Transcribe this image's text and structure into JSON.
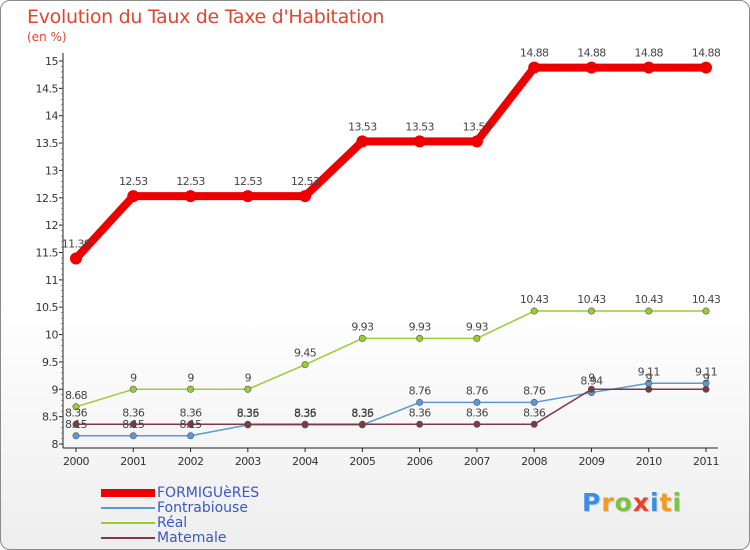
{
  "header": {
    "title": "Evolution du Taux de Taxe d'Habitation",
    "unit": "(en %)"
  },
  "chart_data": {
    "type": "line",
    "title": "Evolution du Taux de Taxe d'Habitation",
    "ylabel": "(en %)",
    "xlabel": "",
    "x": [
      "2000",
      "2001",
      "2002",
      "2003",
      "2004",
      "2005",
      "2006",
      "2007",
      "2008",
      "2009",
      "2010",
      "2011"
    ],
    "ylim": [
      8,
      15
    ],
    "yticks": [
      "8",
      "8.5",
      "9",
      "9.5",
      "10",
      "10.5",
      "11",
      "11.5",
      "12",
      "12.5",
      "13",
      "13.5",
      "14",
      "14.5",
      "15"
    ],
    "grid": false,
    "legend_position": "bottom-left",
    "series": [
      {
        "name": "FORMIGUèRES",
        "color": "#ee0000",
        "values": [
          11.39,
          12.53,
          12.53,
          12.53,
          12.53,
          13.53,
          13.53,
          13.53,
          14.88,
          14.88,
          14.88,
          14.88
        ],
        "labels": [
          "11.39",
          "12.53",
          "12.53",
          "12.53",
          "12.53",
          "13.53",
          "13.53",
          "13.53",
          "14.88",
          "14.88",
          "14.88",
          "14.88"
        ]
      },
      {
        "name": "Fontrabiouse",
        "color": "#5b9bd5",
        "values": [
          8.15,
          8.15,
          8.15,
          8.35,
          8.35,
          8.35,
          8.76,
          8.76,
          8.76,
          8.94,
          9.11,
          9.11
        ],
        "labels": [
          "8.15",
          "8.15",
          "8.15",
          "8.35",
          "8.35",
          "8.35",
          "8.76",
          "8.76",
          "8.76",
          "8.94",
          "9.11",
          "9.11"
        ]
      },
      {
        "name": "Réal",
        "color": "#9acd32",
        "values": [
          8.68,
          9,
          9,
          9,
          9.45,
          9.93,
          9.93,
          9.93,
          10.43,
          10.43,
          10.43,
          10.43
        ],
        "labels": [
          "8.68",
          "9",
          "9",
          "9",
          "9.45",
          "9.93",
          "9.93",
          "9.93",
          "10.43",
          "10.43",
          "10.43",
          "10.43"
        ]
      },
      {
        "name": "Matemale",
        "color": "#7b3a45",
        "values": [
          8.36,
          8.36,
          8.36,
          8.36,
          8.36,
          8.36,
          8.36,
          8.36,
          8.36,
          9,
          9,
          9
        ],
        "labels": [
          "8.36",
          "8.36",
          "8.36",
          "8.36",
          "8.36",
          "8.36",
          "8.36",
          "8.36",
          "8.36",
          "9",
          "9",
          "9"
        ]
      }
    ]
  },
  "logo": {
    "letters": [
      "P",
      "r",
      "o",
      "x",
      "i",
      "t",
      "i"
    ],
    "colors": [
      "#3a8ee6",
      "#f29b1d",
      "#7dc243",
      "#e8432b",
      "#3a8ee6",
      "#f29b1d",
      "#7dc243"
    ]
  }
}
